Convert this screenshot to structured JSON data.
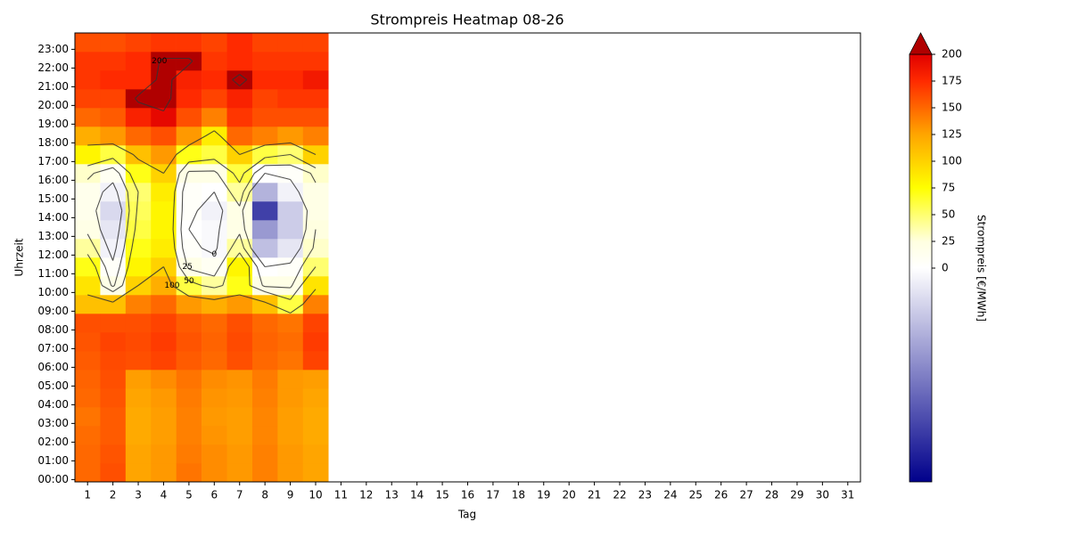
{
  "chart_data": {
    "type": "heatmap",
    "title": "Strompreis Heatmap 08-26",
    "xlabel": "Tag",
    "ylabel": "Uhrzeit",
    "colorbar_label": "Strompreis [€/MWh]",
    "x": [
      1,
      2,
      3,
      4,
      5,
      6,
      7,
      8,
      9,
      10
    ],
    "y": [
      0,
      1,
      2,
      3,
      4,
      5,
      6,
      7,
      8,
      9,
      10,
      11,
      12,
      13,
      14,
      15,
      16,
      17,
      18,
      19,
      20,
      21,
      22,
      23
    ],
    "values": [
      [
        150,
        150,
        148,
        145,
        150,
        152,
        155,
        158,
        160,
        110,
        90,
        70,
        40,
        20,
        15,
        15,
        30,
        80,
        120,
        150,
        165,
        170,
        170,
        160
      ],
      [
        160,
        158,
        155,
        155,
        158,
        160,
        162,
        165,
        160,
        110,
        20,
        5,
        -10,
        -20,
        -30,
        -10,
        10,
        60,
        130,
        155,
        165,
        175,
        170,
        160
      ],
      [
        125,
        125,
        122,
        122,
        125,
        128,
        160,
        162,
        160,
        140,
        100,
        80,
        70,
        60,
        55,
        50,
        70,
        110,
        150,
        180,
        205,
        175,
        175,
        165
      ],
      [
        130,
        130,
        128,
        128,
        130,
        135,
        165,
        168,
        165,
        150,
        120,
        100,
        85,
        80,
        80,
        85,
        100,
        130,
        160,
        195,
        210,
        210,
        205,
        170
      ],
      [
        145,
        142,
        140,
        140,
        142,
        145,
        155,
        158,
        155,
        130,
        60,
        20,
        5,
        0,
        5,
        5,
        20,
        70,
        130,
        160,
        175,
        180,
        205,
        170
      ],
      [
        135,
        135,
        132,
        130,
        132,
        135,
        150,
        152,
        150,
        120,
        40,
        10,
        -5,
        -5,
        -10,
        0,
        20,
        60,
        85,
        140,
        165,
        175,
        170,
        165
      ],
      [
        130,
        130,
        128,
        128,
        130,
        132,
        160,
        162,
        160,
        130,
        70,
        80,
        40,
        20,
        20,
        40,
        60,
        100,
        150,
        170,
        180,
        210,
        175,
        175
      ],
      [
        140,
        140,
        138,
        138,
        140,
        142,
        150,
        152,
        150,
        110,
        20,
        0,
        -50,
        -80,
        -150,
        -60,
        0,
        60,
        140,
        160,
        165,
        175,
        170,
        165
      ],
      [
        130,
        130,
        128,
        128,
        130,
        130,
        145,
        148,
        145,
        60,
        20,
        5,
        -20,
        -40,
        -40,
        -10,
        5,
        50,
        130,
        160,
        170,
        175,
        170,
        165
      ],
      [
        125,
        125,
        122,
        122,
        125,
        128,
        165,
        168,
        165,
        140,
        90,
        50,
        30,
        25,
        20,
        20,
        30,
        100,
        140,
        160,
        170,
        185,
        170,
        165
      ]
    ],
    "xlim": [
      0.5,
      31.5
    ],
    "xticks": [
      1,
      2,
      3,
      4,
      5,
      6,
      7,
      8,
      9,
      10,
      11,
      12,
      13,
      14,
      15,
      16,
      17,
      18,
      19,
      20,
      21,
      22,
      23,
      24,
      25,
      26,
      27,
      28,
      29,
      30,
      31
    ],
    "ylim": [
      -0.125,
      23.875
    ],
    "yticks": [
      {
        "value": 0,
        "label": "00:00"
      },
      {
        "value": 1,
        "label": "01:00"
      },
      {
        "value": 2,
        "label": "02:00"
      },
      {
        "value": 3,
        "label": "03:00"
      },
      {
        "value": 4,
        "label": "04:00"
      },
      {
        "value": 5,
        "label": "05:00"
      },
      {
        "value": 6,
        "label": "06:00"
      },
      {
        "value": 7,
        "label": "07:00"
      },
      {
        "value": 8,
        "label": "08:00"
      },
      {
        "value": 9,
        "label": "09:00"
      },
      {
        "value": 10,
        "label": "10:00"
      },
      {
        "value": 11,
        "label": "11:00"
      },
      {
        "value": 12,
        "label": "12:00"
      },
      {
        "value": 13,
        "label": "13:00"
      },
      {
        "value": 14,
        "label": "14:00"
      },
      {
        "value": 15,
        "label": "15:00"
      },
      {
        "value": 16,
        "label": "16:00"
      },
      {
        "value": 17,
        "label": "17:00"
      },
      {
        "value": 18,
        "label": "18:00"
      },
      {
        "value": 19,
        "label": "19:00"
      },
      {
        "value": 20,
        "label": "20:00"
      },
      {
        "value": 21,
        "label": "21:00"
      },
      {
        "value": 22,
        "label": "22:00"
      },
      {
        "value": 23,
        "label": "23:00"
      }
    ],
    "clim": [
      -200,
      200
    ],
    "cticks": [
      0,
      25,
      50,
      75,
      100,
      125,
      150,
      175,
      200
    ],
    "colormap": [
      {
        "value": -200,
        "color": "#00008b"
      },
      {
        "value": 0,
        "color": "#ffffff"
      },
      {
        "value": 25,
        "color": "#ffffe0"
      },
      {
        "value": 75,
        "color": "#ffff00"
      },
      {
        "value": 125,
        "color": "#ffa500"
      },
      {
        "value": 175,
        "color": "#ff2a00"
      },
      {
        "value": 200,
        "color": "#e00000"
      }
    ],
    "over_color": "#b00000",
    "contour_levels": [
      0,
      25,
      50,
      100,
      200
    ]
  }
}
